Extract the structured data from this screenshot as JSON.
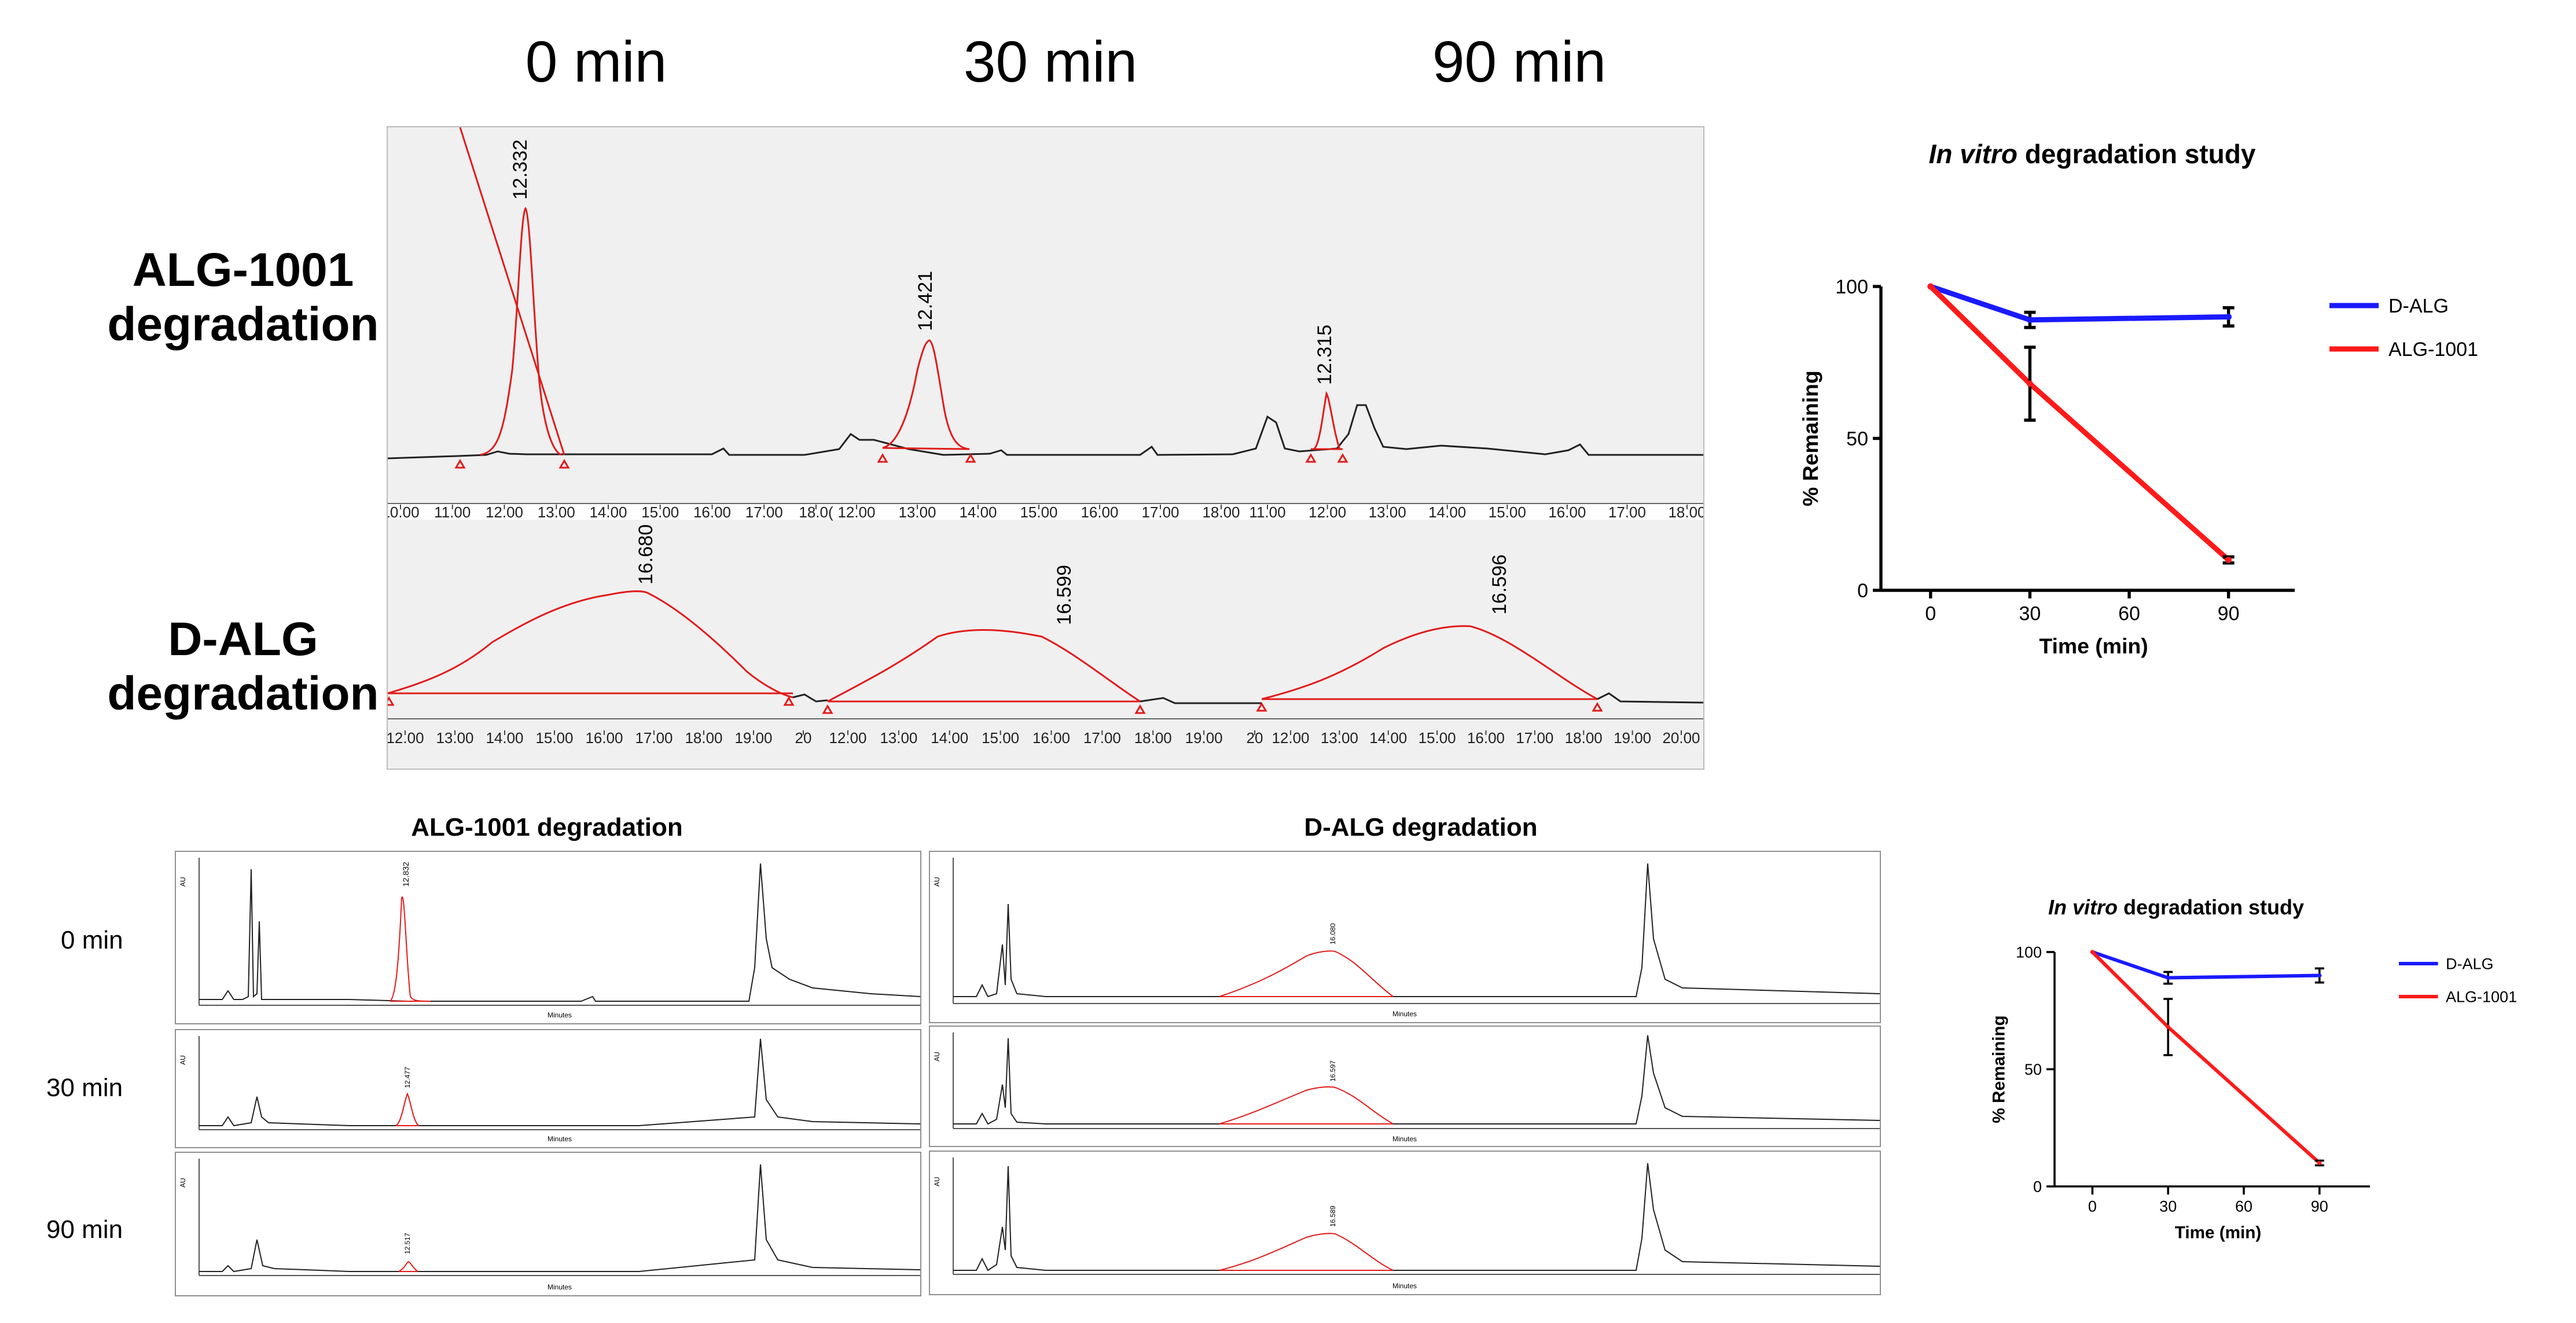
{
  "top": {
    "time_headers": [
      "0 min",
      "30 min",
      "90 min"
    ],
    "row_labels": {
      "alg1001": [
        "ALG-1001",
        "degradation"
      ],
      "dalg": [
        "D-ALG",
        "degradation"
      ]
    },
    "alg1001_peaks": [
      "12.332",
      "12.421",
      "12.315"
    ],
    "dalg_peaks": [
      "16.680",
      "16.599",
      "16.596"
    ],
    "alg1001_axis": [
      [
        "10.00",
        "11.00",
        "12.00",
        "13.00",
        "14.00",
        "15.00",
        "16.00",
        "17.00",
        "18.0("
      ],
      [
        "12.00",
        "13.00",
        "14.00",
        "15.00",
        "16.00",
        "17.00",
        "18.00"
      ],
      [
        "11.00",
        "12.00",
        "13.00",
        "14.00",
        "15.00",
        "16.00",
        "17.00",
        "18.00"
      ]
    ],
    "dalg_axis": [
      [
        "12.00",
        "13.00",
        "14.00",
        "15.00",
        "16.00",
        "17.00",
        "18.00",
        "19.00",
        "20"
      ],
      [
        "12.00",
        "13.00",
        "14.00",
        "15.00",
        "16.00",
        "17.00",
        "18.00",
        "19.00",
        "20"
      ],
      [
        "12.00",
        "13.00",
        "14.00",
        "15.00",
        "16.00",
        "17.00",
        "18.00",
        "19.00",
        "20.00"
      ]
    ]
  },
  "bottom": {
    "alg1001_title": "ALG-1001 degradation",
    "dalg_title": "D-ALG degradation",
    "time_labels": [
      "0 min",
      "30 min",
      "90 min"
    ],
    "alg1001_peaks": [
      "12.832",
      "12.477",
      "12.517"
    ],
    "dalg_peaks": [
      "16.080",
      "16.597",
      "16.589"
    ],
    "axis_title": "Minutes",
    "y_unit": "AU"
  },
  "chart_data": [
    {
      "type": "line",
      "title_italic": "In vitro",
      "title_rest": " degradation study",
      "xlabel": "Time  (min)",
      "ylabel": "% Remaining",
      "x": [
        0,
        30,
        60,
        90
      ],
      "xlim": [
        -15,
        110
      ],
      "ylim": [
        0,
        100
      ],
      "x_ticks": [
        "0",
        "30",
        "60",
        "90"
      ],
      "y_ticks": [
        "0",
        "50",
        "100"
      ],
      "legend_position": "right",
      "series": [
        {
          "name": "D-ALG",
          "color": "#1a1aff",
          "x": [
            0,
            30,
            90
          ],
          "values": [
            100,
            89,
            90
          ],
          "errors": [
            0,
            2.5,
            3
          ]
        },
        {
          "name": "ALG-1001",
          "color": "#ff1a1a",
          "x": [
            0,
            30,
            90
          ],
          "values": [
            100,
            68,
            10
          ],
          "errors": [
            0,
            12,
            1
          ]
        }
      ]
    },
    {
      "type": "line",
      "title_italic": "In vitro",
      "title_rest": " degradation study",
      "xlabel": "Time  (min)",
      "ylabel": "% Remaining",
      "x": [
        0,
        30,
        60,
        90
      ],
      "xlim": [
        -15,
        110
      ],
      "ylim": [
        0,
        100
      ],
      "x_ticks": [
        "0",
        "30",
        "60",
        "90"
      ],
      "y_ticks": [
        "0",
        "50",
        "100"
      ],
      "legend_position": "right",
      "series": [
        {
          "name": "D-ALG",
          "color": "#1a1aff",
          "x": [
            0,
            30,
            90
          ],
          "values": [
            100,
            89,
            90
          ],
          "errors": [
            0,
            2.5,
            3
          ]
        },
        {
          "name": "ALG-1001",
          "color": "#ff1a1a",
          "x": [
            0,
            30,
            90
          ],
          "values": [
            100,
            68,
            10
          ],
          "errors": [
            0,
            12,
            1
          ]
        }
      ]
    }
  ]
}
